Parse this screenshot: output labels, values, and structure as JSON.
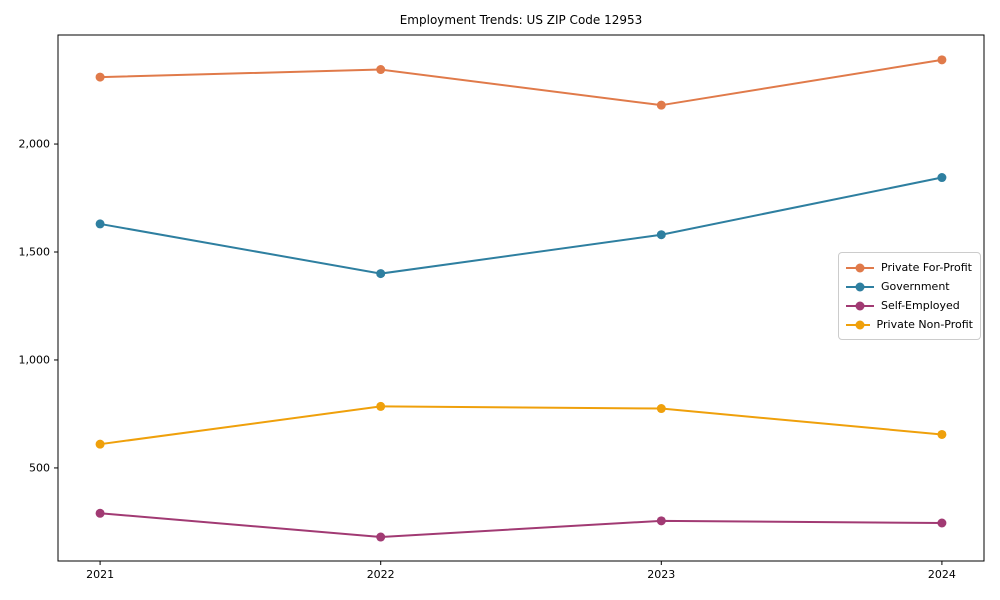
{
  "chart_data": {
    "type": "line",
    "title": "Employment Trends: US ZIP Code 12953",
    "xlabel": "",
    "ylabel": "",
    "x": [
      2021,
      2022,
      2023,
      2024
    ],
    "x_tick_labels": [
      "2021",
      "2022",
      "2023",
      "2024"
    ],
    "y_ticks": [
      500,
      1000,
      1500,
      2000
    ],
    "y_tick_labels": [
      "500",
      "1,000",
      "1,500",
      "2,000"
    ],
    "xlim": [
      2020.85,
      2024.15
    ],
    "ylim": [
      69,
      2505
    ],
    "grid": false,
    "legend_position": "center right",
    "marker": "circle",
    "axis_color": "#000000",
    "background_color": "#ffffff",
    "legend_border_color": "#cccccc",
    "series": [
      {
        "name": "Private For-Profit",
        "color": "#e07a4a",
        "values": [
          2310,
          2345,
          2180,
          2390
        ]
      },
      {
        "name": "Government",
        "color": "#2e7fa0",
        "values": [
          1630,
          1400,
          1580,
          1845
        ]
      },
      {
        "name": "Self-Employed",
        "color": "#a13a73",
        "values": [
          290,
          180,
          255,
          245
        ]
      },
      {
        "name": "Private Non-Profit",
        "color": "#efa00b",
        "values": [
          610,
          785,
          775,
          655
        ]
      }
    ]
  }
}
